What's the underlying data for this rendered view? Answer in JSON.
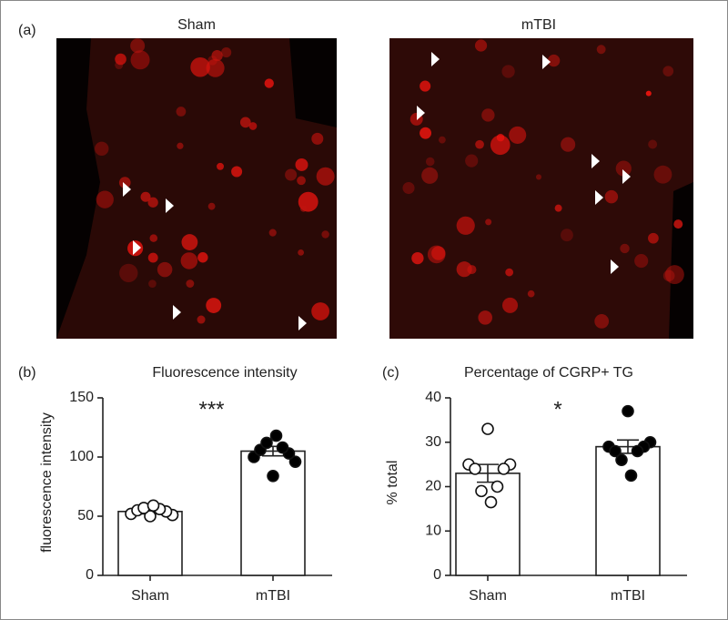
{
  "panel_a": {
    "label": "(a)",
    "left_title": "Sham",
    "right_title": "mTBI"
  },
  "chart_data": [
    {
      "type": "bar",
      "panel": "(b)",
      "title": "Fluorescence intensity",
      "ylabel": "fluorescence intensity",
      "categories": [
        "Sham",
        "mTBI"
      ],
      "values": [
        54,
        105
      ],
      "errors": [
        2,
        4
      ],
      "points": [
        [
          50,
          51,
          52,
          54,
          55,
          56,
          57,
          59
        ],
        [
          84,
          96,
          100,
          103,
          106,
          108,
          112,
          118
        ]
      ],
      "point_colors": [
        "#ffffff",
        "#000000"
      ],
      "color": "#ffffff",
      "annotation": "***",
      "ylim": [
        0,
        150
      ],
      "yticks": [
        0,
        50,
        100,
        150
      ]
    },
    {
      "type": "bar",
      "panel": "(c)",
      "title": "Percentage of  CGRP+ TG",
      "ylabel": "% total",
      "categories": [
        "Sham",
        "mTBI"
      ],
      "values": [
        23,
        29
      ],
      "errors": [
        2,
        1.5
      ],
      "points": [
        [
          33,
          25,
          25,
          24,
          24,
          20,
          19,
          16.5
        ],
        [
          37,
          30,
          29,
          29,
          28,
          28,
          26,
          22.5
        ]
      ],
      "point_colors": [
        "#ffffff",
        "#000000"
      ],
      "color": "#ffffff",
      "annotation": "*",
      "ylim": [
        0,
        40
      ],
      "yticks": [
        0,
        10,
        20,
        30,
        40
      ]
    }
  ]
}
